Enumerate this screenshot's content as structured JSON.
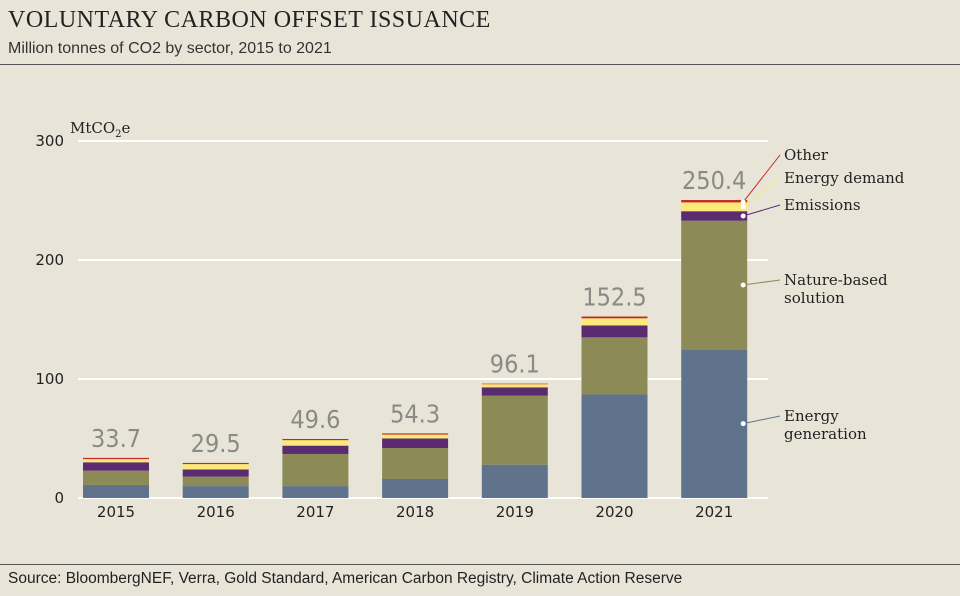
{
  "header": {
    "title": "VOLUNTARY CARBON OFFSET ISSUANCE",
    "subtitle": "Million tonnes of CO2 by sector, 2015 to 2021"
  },
  "footer": {
    "source": "Source: BloombergNEF, Verra, Gold Standard, American Carbon Registry, Climate Action Reserve"
  },
  "chart_data": {
    "type": "bar",
    "stacked": true,
    "unit_label": {
      "base": "MtCO",
      "sub": "2",
      "suffix": "e"
    },
    "ylim": [
      0,
      300
    ],
    "yticks": [
      0,
      100,
      200,
      300
    ],
    "grid": true,
    "categories": [
      "2015",
      "2016",
      "2017",
      "2018",
      "2019",
      "2020",
      "2021"
    ],
    "totals": [
      "33.7",
      "29.5",
      "49.6",
      "54.3",
      "96.1",
      "152.5",
      "250.4"
    ],
    "series": [
      {
        "name": "Energy generation",
        "legend": [
          "Energy",
          "generation"
        ],
        "color": "#5f748c",
        "values": [
          11,
          10,
          10,
          16,
          28,
          87,
          125
        ]
      },
      {
        "name": "Nature-based solution",
        "legend": [
          "Nature-based",
          "solution"
        ],
        "color": "#8c8a56",
        "values": [
          12,
          8,
          27,
          26,
          58,
          48,
          108
        ]
      },
      {
        "name": "Emissions",
        "legend": [
          "Emissions"
        ],
        "color": "#5b2b72",
        "values": [
          7,
          6,
          7,
          8,
          7,
          10,
          8
        ]
      },
      {
        "name": "Energy demand",
        "legend": [
          "Energy demand"
        ],
        "color": "#fde97a",
        "values": [
          2.7,
          4.5,
          4.6,
          3.3,
          2.6,
          6,
          7.4
        ]
      },
      {
        "name": "Other",
        "legend": [
          "Other"
        ],
        "color": "#c42a20",
        "values": [
          1,
          1,
          1,
          1,
          0.5,
          1.5,
          2
        ]
      }
    ],
    "legend_placement": "right"
  }
}
